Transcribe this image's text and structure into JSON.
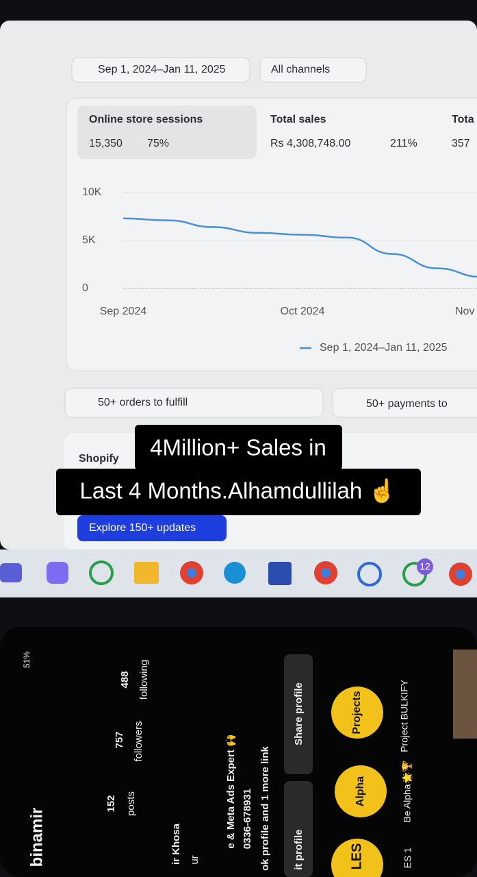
{
  "date_range": "Sep 1, 2024–Jan 11, 2025",
  "channel_filter": "All channels",
  "metrics": [
    {
      "label": "Online store sessions",
      "value": "15,350",
      "change": "75%"
    },
    {
      "label": "Total sales",
      "value": "Rs 4,308,748.00",
      "change": "211%"
    },
    {
      "label": "Tota",
      "value": "357"
    }
  ],
  "chart_data": {
    "type": "line",
    "categories": [
      "Sep 2024",
      null,
      null,
      null,
      "Oct 2024",
      null,
      null,
      null,
      "Nov"
    ],
    "series": [
      {
        "name": "Sep 1, 2024–Jan 11, 2025",
        "color": "#4a90d6",
        "values": [
          7300,
          7100,
          6400,
          5800,
          5600,
          5300,
          3600,
          2100,
          1200
        ]
      }
    ],
    "ylim": [
      0,
      10000
    ],
    "yticks": [
      0,
      {
        "value": 5000,
        "label": "5K"
      },
      {
        "value": 10000,
        "label": "10K"
      }
    ],
    "grid": true
  },
  "tasks": [
    "50+ orders to fulfill",
    "50+ payments to"
  ],
  "shopify_card": {
    "title": "Shopify",
    "button": "Explore 150+ updates"
  },
  "caption": [
    "4Million+ Sales in",
    "Last 4 Months.Alhamdullilah ☝️"
  ],
  "taskbar": {
    "badge": "12"
  },
  "phone": {
    "battery": "51%",
    "username": "binamir",
    "posts": "152",
    "posts_label": "posts",
    "followers": "757",
    "followers_label": "followers",
    "following": "488",
    "following_label": "following",
    "bio": [
      "ir Khosa",
      "ur",
      "e & Meta Ads Expert 🙌",
      "0336-678931",
      "ok profile and 1 more link"
    ],
    "buttons": [
      "it profile",
      "Share profile"
    ],
    "highlights": [
      {
        "title": "Projects",
        "caption": "Project BULKIFY"
      },
      {
        "title": "Alpha",
        "caption": "Be Alpha🌟🏆"
      },
      {
        "title": "LES",
        "caption": "ES 1"
      }
    ]
  }
}
